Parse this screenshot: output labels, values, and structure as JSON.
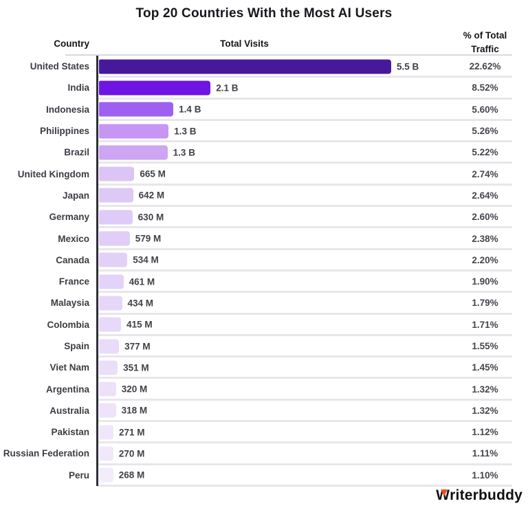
{
  "title": "Top 20 Countries With the Most AI Users",
  "columns": {
    "country": "Country",
    "visits": "Total Visits",
    "pct": "% of Total Traffic"
  },
  "footer": {
    "logo_w": "W",
    "logo_rest": "riterbuddy"
  },
  "chart_data": {
    "type": "bar",
    "orientation": "horizontal",
    "title": "Top 20 Countries With the Most AI Users",
    "xlabel": "Total Visits",
    "ylabel": "Country",
    "legend": false,
    "grid": "row-separators",
    "max_value_m": 5500,
    "accent_colors": {
      "darkest_bar": "#47189c",
      "lightest_bar": "#f2ecfb",
      "logo_accent": "#f44d1e"
    },
    "rows": [
      {
        "country": "United States",
        "visits_label": "5.5 B",
        "visits_m": 5500,
        "pct": "22.62%",
        "color": "#47189c"
      },
      {
        "country": "India",
        "visits_label": "2.1 B",
        "visits_m": 2100,
        "pct": "8.52%",
        "color": "#6e15e4"
      },
      {
        "country": "Indonesia",
        "visits_label": "1.4 B",
        "visits_m": 1400,
        "pct": "5.60%",
        "color": "#9e60f0"
      },
      {
        "country": "Philippines",
        "visits_label": "1.3 B",
        "visits_m": 1310,
        "pct": "5.26%",
        "color": "#c795f3"
      },
      {
        "country": "Brazil",
        "visits_label": "1.3 B",
        "visits_m": 1290,
        "pct": "5.22%",
        "color": "#cda5f2"
      },
      {
        "country": "United Kingdom",
        "visits_label": "665 M",
        "visits_m": 665,
        "pct": "2.74%",
        "color": "#dcc5f6"
      },
      {
        "country": "Japan",
        "visits_label": "642 M",
        "visits_m": 642,
        "pct": "2.64%",
        "color": "#dec8f6"
      },
      {
        "country": "Germany",
        "visits_label": "630 M",
        "visits_m": 630,
        "pct": "2.60%",
        "color": "#dfcbf7"
      },
      {
        "country": "Mexico",
        "visits_label": "579 M",
        "visits_m": 579,
        "pct": "2.38%",
        "color": "#e1cdf7"
      },
      {
        "country": "Canada",
        "visits_label": "534 M",
        "visits_m": 534,
        "pct": "2.20%",
        "color": "#e3d0f7"
      },
      {
        "country": "France",
        "visits_label": "461 M",
        "visits_m": 461,
        "pct": "1.90%",
        "color": "#e4d3f8"
      },
      {
        "country": "Malaysia",
        "visits_label": "434 M",
        "visits_m": 434,
        "pct": "1.79%",
        "color": "#e6d6f8"
      },
      {
        "country": "Colombia",
        "visits_label": "415 M",
        "visits_m": 415,
        "pct": "1.71%",
        "color": "#e8d8f9"
      },
      {
        "country": "Spain",
        "visits_label": "377 M",
        "visits_m": 377,
        "pct": "1.55%",
        "color": "#e9dbf9"
      },
      {
        "country": "Viet Nam",
        "visits_label": "351 M",
        "visits_m": 351,
        "pct": "1.45%",
        "color": "#ebdef9"
      },
      {
        "country": "Argentina",
        "visits_label": "320 M",
        "visits_m": 320,
        "pct": "1.32%",
        "color": "#ede1fa"
      },
      {
        "country": "Australia",
        "visits_label": "318 M",
        "visits_m": 318,
        "pct": "1.32%",
        "color": "#eee3fa"
      },
      {
        "country": "Pakistan",
        "visits_label": "271 M",
        "visits_m": 271,
        "pct": "1.12%",
        "color": "#f0e6fb"
      },
      {
        "country": "Russian Federation",
        "visits_label": "270 M",
        "visits_m": 270,
        "pct": "1.11%",
        "color": "#f1e9fb"
      },
      {
        "country": "Peru",
        "visits_label": "268 M",
        "visits_m": 268,
        "pct": "1.10%",
        "color": "#f2ecfb"
      }
    ]
  }
}
